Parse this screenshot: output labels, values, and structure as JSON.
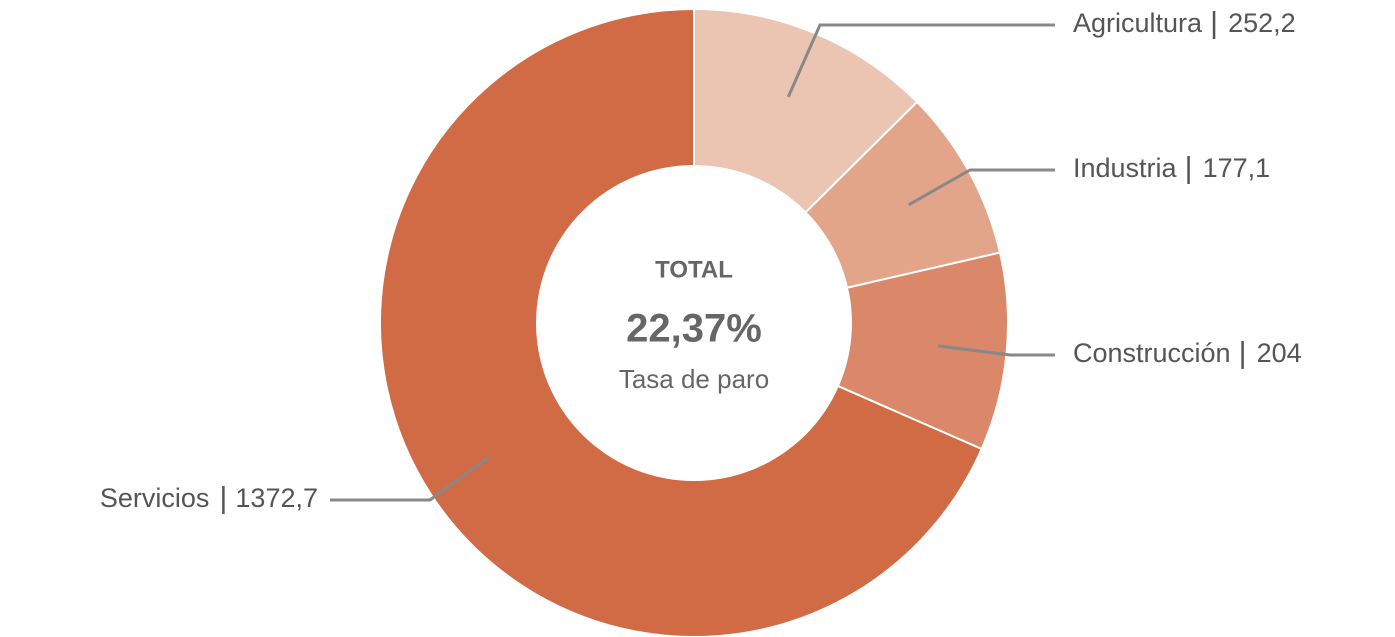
{
  "chart_data": {
    "type": "donut",
    "categories": [
      "Agricultura",
      "Industria",
      "Construcción",
      "Servicios"
    ],
    "values": [
      252.2,
      177.1,
      204,
      1372.7
    ],
    "value_labels": [
      "252,2",
      "177,1",
      "204",
      "1372,7"
    ],
    "colors": [
      "#ecc4b2",
      "#e3a58a",
      "#da876a",
      "#d16b45"
    ],
    "center_title": "TOTAL",
    "center_value": "22,37%",
    "center_subtitle": "Tasa de paro"
  }
}
